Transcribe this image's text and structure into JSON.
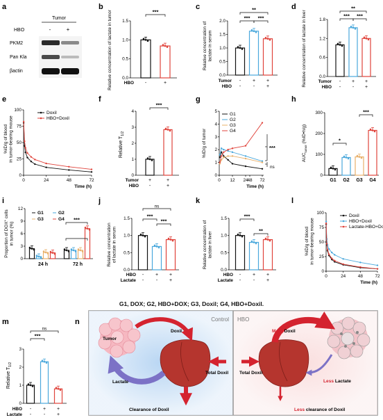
{
  "colors": {
    "control": "#111111",
    "hbo": "#e0433b",
    "blue": "#4aa8dc",
    "orange": "#e8b06a",
    "lactate_blue": "#4e9ed8"
  },
  "panel_labels": {
    "a": "a",
    "b": "b",
    "c": "c",
    "d": "d",
    "e": "e",
    "f": "f",
    "g": "g",
    "h": "h",
    "i": "i",
    "j": "j",
    "k": "k",
    "l": "l",
    "m": "m",
    "n": "n"
  },
  "sig": {
    "s1": "*",
    "s2": "**",
    "s3": "***",
    "ns": "ns"
  },
  "rows": {
    "tumor": "Tumor",
    "hbo": "HBO",
    "lactate": "Lactate",
    "plus": "+",
    "minus": "-"
  },
  "panel_a": {
    "header": "Tumor",
    "hbo_label": "HBO",
    "minus": "-",
    "plus": "+",
    "bands": [
      "PKM2",
      "Pan Kla",
      "βactin"
    ]
  },
  "panel_b": {
    "ylabel": "Relative concentration of lactate in tumor",
    "yticks": [
      "0.0",
      "0.5",
      "1.0",
      "1.5"
    ]
  },
  "panel_c": {
    "ylabel1": "Relative concentration of",
    "ylabel2": "lactate in serum",
    "yticks": [
      "0.0",
      "0.5",
      "1.0",
      "1.5",
      "2.0"
    ]
  },
  "panel_d": {
    "ylabel": "Relative concentration of lactate in liver",
    "yticks": [
      "0.0",
      "0.6",
      "1.2",
      "1.8"
    ]
  },
  "panel_e": {
    "ylabel1": "%ID/g of blood",
    "ylabel2": "in tumor-bearing mouse",
    "xlabel": "Time (h)",
    "yticks": [
      "0",
      "25",
      "50",
      "75",
      "100"
    ],
    "xticks": [
      "0",
      "24",
      "48",
      "72"
    ],
    "legend": [
      "Doxil",
      "HBO+Doxil"
    ]
  },
  "panel_f": {
    "ylabel": "Relative T",
    "ylabel_sub": "1/2",
    "yticks": [
      "0",
      "1",
      "2",
      "3",
      "4"
    ]
  },
  "panel_g": {
    "ylabel": "%ID/g of tumor",
    "xlabel": "Time (h)",
    "yticks": [
      "0",
      "1",
      "2",
      "3",
      "4",
      "5"
    ],
    "xticks": [
      "0",
      "12",
      "24",
      "48",
      "72"
    ],
    "legend": [
      "G1",
      "G2",
      "G3",
      "G4"
    ]
  },
  "panel_h": {
    "ylabel": "AUC",
    "ylabel_sub": "tumor",
    "ylabel_tail": " (%ID•h/g)",
    "yticks": [
      "0",
      "100",
      "200",
      "300"
    ],
    "categories": [
      "G1",
      "G2",
      "G3",
      "G4"
    ]
  },
  "panel_i": {
    "ylabel1": "Proportion of DOX",
    "ylabel_sup": "+",
    "ylabel_tail": " cells",
    "ylabel2": "in tumor (%)",
    "yticks": [
      "0",
      "3",
      "6",
      "9",
      "12"
    ],
    "groups": [
      "24 h",
      "72 h"
    ],
    "legend": [
      "G1",
      "G2",
      "G3",
      "G4"
    ]
  },
  "panel_j": {
    "ylabel1": "Relative concentration",
    "ylabel2": "of lactate in serum",
    "yticks": [
      "0.0",
      "0.5",
      "1.0",
      "1.5"
    ]
  },
  "panel_k": {
    "ylabel1": "Relative concentration of",
    "ylabel2": "lactate in liver",
    "yticks": [
      "0.0",
      "0.5",
      "1.0",
      "1.5"
    ]
  },
  "panel_l": {
    "ylabel1": "%ID/g of blood",
    "ylabel2": "in tumor-bearing mouse",
    "xlabel": "Time (h)",
    "yticks": [
      "0",
      "25",
      "50",
      "75",
      "100"
    ],
    "xticks": [
      "0",
      "24",
      "48",
      "72"
    ],
    "legend": [
      "Doxil",
      "HBO+Doxil",
      "Lactate-HBO+Doxil"
    ]
  },
  "caption": "G1, DOX; G2, HBO+DOX; G3, Doxil; G4, HBO+Doxil.",
  "panel_m": {
    "ylabel": "Relative T",
    "ylabel_sub": "1/2",
    "yticks": [
      "0",
      "1",
      "2",
      "3"
    ]
  },
  "panel_n": {
    "control_title": "Control",
    "hbo_title": "HBO",
    "tumor": "Tumor",
    "doxil": "Doxil",
    "lactate": "Lactate",
    "total_doxil_left": "Total Doxil",
    "clearance": "Clearance of Doxil",
    "more": "More",
    "doxil_right": " Doxil",
    "less1": "Less",
    "lactate_right": " Lactate",
    "total_doxil_right": "Total Doxil",
    "less2": "Less",
    "clearance_right": " clearance of Doxil"
  },
  "chart_data": [
    {
      "panel": "b",
      "type": "bar",
      "categories": [
        "-",
        "+"
      ],
      "values": [
        1.0,
        0.84
      ],
      "ylim": [
        0,
        1.5
      ]
    },
    {
      "panel": "c",
      "type": "bar",
      "categories": [
        "Control",
        "Tumor",
        "Tumor+HBO"
      ],
      "values": [
        1.0,
        1.62,
        1.34
      ],
      "ylim": [
        0,
        2.0
      ]
    },
    {
      "panel": "d",
      "type": "bar",
      "categories": [
        "Control",
        "Tumor",
        "Tumor+HBO"
      ],
      "values": [
        1.0,
        1.54,
        1.2
      ],
      "ylim": [
        0,
        1.8
      ]
    },
    {
      "panel": "e",
      "type": "line",
      "x": [
        0.08,
        1,
        2,
        4,
        8,
        12,
        24,
        48,
        72
      ],
      "series": [
        {
          "name": "Doxil",
          "values": [
            80,
            45,
            35,
            27,
            21,
            17,
            12,
            8,
            5
          ]
        },
        {
          "name": "HBO+Doxil",
          "values": [
            82,
            52,
            42,
            34,
            28,
            24,
            18,
            13,
            9
          ]
        }
      ],
      "ylim": [
        0,
        100
      ],
      "xlim": [
        0,
        72
      ]
    },
    {
      "panel": "f",
      "type": "bar",
      "categories": [
        "Tumor",
        "Tumor+HBO"
      ],
      "values": [
        1.0,
        2.85
      ],
      "ylim": [
        0,
        4
      ]
    },
    {
      "panel": "g",
      "type": "line",
      "x": [
        0.5,
        2,
        4,
        8,
        12,
        24,
        72
      ],
      "series": [
        {
          "name": "G1",
          "values": [
            1.4,
            1.8,
            1.5,
            1.2,
            0.9,
            0.7,
            0.5
          ]
        },
        {
          "name": "G2",
          "values": [
            1.6,
            2.1,
            2.0,
            1.9,
            1.8,
            1.5,
            1.1
          ]
        },
        {
          "name": "G3",
          "values": [
            0.9,
            1.2,
            1.4,
            1.5,
            1.5,
            1.3,
            1.0
          ]
        },
        {
          "name": "G4",
          "values": [
            1.0,
            1.5,
            1.8,
            2.0,
            2.1,
            2.3,
            4.1
          ]
        }
      ],
      "ylim": [
        0,
        5
      ]
    },
    {
      "panel": "h",
      "type": "bar",
      "categories": [
        "G1",
        "G2",
        "G3",
        "G4"
      ],
      "values": [
        32,
        85,
        88,
        215
      ],
      "ylim": [
        0,
        300
      ]
    },
    {
      "panel": "i",
      "type": "bar",
      "categories": [
        "24 h",
        "72 h"
      ],
      "series": [
        {
          "name": "G1",
          "values": [
            2.4,
            2.0
          ]
        },
        {
          "name": "G2",
          "values": [
            0.5,
            2.0
          ]
        },
        {
          "name": "G3",
          "values": [
            1.5,
            2.0
          ]
        },
        {
          "name": "G4",
          "values": [
            1.4,
            7.2
          ]
        }
      ],
      "ylim": [
        0,
        12
      ]
    },
    {
      "panel": "j",
      "type": "bar",
      "categories": [
        "-",
        "HBO",
        "HBO+Lactate"
      ],
      "values": [
        1.0,
        0.68,
        0.88
      ],
      "ylim": [
        0,
        1.5
      ]
    },
    {
      "panel": "k",
      "type": "bar",
      "categories": [
        "-",
        "HBO",
        "HBO+Lactate"
      ],
      "values": [
        1.0,
        0.8,
        0.88
      ],
      "ylim": [
        0,
        1.5
      ]
    },
    {
      "panel": "l",
      "type": "line",
      "x": [
        0.08,
        1,
        2,
        4,
        8,
        12,
        24,
        48,
        72
      ],
      "series": [
        {
          "name": "Doxil",
          "values": [
            80,
            45,
            35,
            27,
            20,
            16,
            11,
            6,
            4
          ]
        },
        {
          "name": "HBO+Doxil",
          "values": [
            85,
            55,
            45,
            38,
            32,
            28,
            21,
            15,
            10
          ]
        },
        {
          "name": "Lactate-HBO+Doxil",
          "values": [
            82,
            47,
            37,
            29,
            22,
            18,
            12,
            7,
            4
          ]
        }
      ],
      "ylim": [
        0,
        100
      ],
      "xlim": [
        0,
        72
      ]
    },
    {
      "panel": "m",
      "type": "bar",
      "categories": [
        "-",
        "HBO",
        "HBO+Lactate"
      ],
      "values": [
        1.0,
        2.3,
        0.8
      ],
      "ylim": [
        0,
        3
      ]
    }
  ]
}
